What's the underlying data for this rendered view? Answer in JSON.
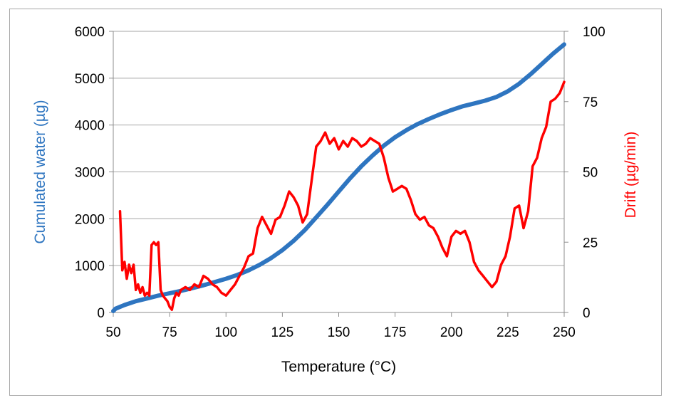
{
  "chart_data": {
    "type": "line",
    "title": "",
    "xlabel": "Temperature (°C)",
    "ylabel": "Cumulated water (µg)",
    "y2label": "Drift (µg/min)",
    "xlim": [
      50,
      250
    ],
    "ylim": [
      0,
      6000
    ],
    "y2lim": [
      0,
      100
    ],
    "x_ticks": [
      50,
      75,
      100,
      125,
      150,
      175,
      200,
      225,
      250
    ],
    "y_ticks": [
      0,
      1000,
      2000,
      3000,
      4000,
      5000,
      6000
    ],
    "y2_ticks": [
      0,
      25,
      50,
      75,
      100
    ],
    "grid": "horizontal",
    "series": [
      {
        "name": "Cumulated water (µg)",
        "axis": "left",
        "color": "#2e75c0",
        "x": [
          50,
          51,
          55,
          60,
          65,
          70,
          75,
          80,
          85,
          90,
          95,
          100,
          105,
          110,
          115,
          120,
          125,
          130,
          135,
          140,
          145,
          150,
          155,
          160,
          165,
          170,
          175,
          180,
          185,
          190,
          195,
          200,
          205,
          210,
          215,
          220,
          225,
          230,
          235,
          240,
          245,
          250
        ],
        "values": [
          30,
          80,
          160,
          240,
          300,
          360,
          410,
          460,
          520,
          580,
          650,
          720,
          800,
          900,
          1020,
          1160,
          1330,
          1530,
          1760,
          2030,
          2300,
          2580,
          2860,
          3120,
          3350,
          3560,
          3740,
          3890,
          4020,
          4130,
          4230,
          4320,
          4400,
          4460,
          4520,
          4600,
          4720,
          4880,
          5080,
          5300,
          5520,
          5720
        ]
      },
      {
        "name": "Drift (µg/min)",
        "axis": "right",
        "color": "#ff0000",
        "x": [
          53,
          54,
          55,
          56,
          57,
          58,
          59,
          60,
          61,
          62,
          63,
          64,
          65,
          66,
          67,
          68,
          69,
          70,
          71,
          72,
          73,
          74,
          75,
          76,
          77,
          78,
          79,
          80,
          82,
          84,
          86,
          88,
          90,
          92,
          94,
          96,
          98,
          100,
          102,
          104,
          106,
          108,
          110,
          112,
          114,
          116,
          118,
          120,
          122,
          124,
          126,
          128,
          130,
          132,
          134,
          136,
          138,
          140,
          142,
          144,
          146,
          148,
          150,
          152,
          154,
          156,
          158,
          160,
          162,
          164,
          166,
          168,
          170,
          172,
          174,
          176,
          178,
          180,
          182,
          184,
          186,
          188,
          190,
          192,
          194,
          196,
          198,
          200,
          202,
          204,
          206,
          208,
          210,
          212,
          214,
          216,
          218,
          220,
          222,
          224,
          226,
          228,
          230,
          232,
          234,
          236,
          238,
          240,
          242,
          244,
          246,
          248,
          250
        ],
        "values": [
          36,
          15,
          18,
          12,
          17,
          14,
          17,
          8,
          10,
          7,
          9,
          6,
          7,
          6,
          24,
          25,
          24,
          25,
          8,
          6,
          5,
          4,
          2,
          1,
          5,
          7,
          6,
          8,
          9,
          8,
          10,
          9,
          13,
          12,
          10,
          9,
          7,
          6,
          8,
          10,
          13,
          16,
          20,
          21,
          30,
          34,
          31,
          28,
          33,
          34,
          38,
          43,
          41,
          38,
          32,
          35,
          47,
          59,
          61,
          64,
          60,
          62,
          58,
          61,
          59,
          62,
          61,
          59,
          60,
          62,
          61,
          60,
          55,
          48,
          43,
          44,
          45,
          44,
          40,
          35,
          33,
          34,
          31,
          30,
          27,
          23,
          20,
          27,
          29,
          28,
          29,
          25,
          18,
          15,
          13,
          11,
          9,
          11,
          17,
          20,
          27,
          37,
          38,
          30,
          36,
          52,
          55,
          62,
          66,
          75,
          76,
          78,
          82
        ]
      }
    ]
  }
}
